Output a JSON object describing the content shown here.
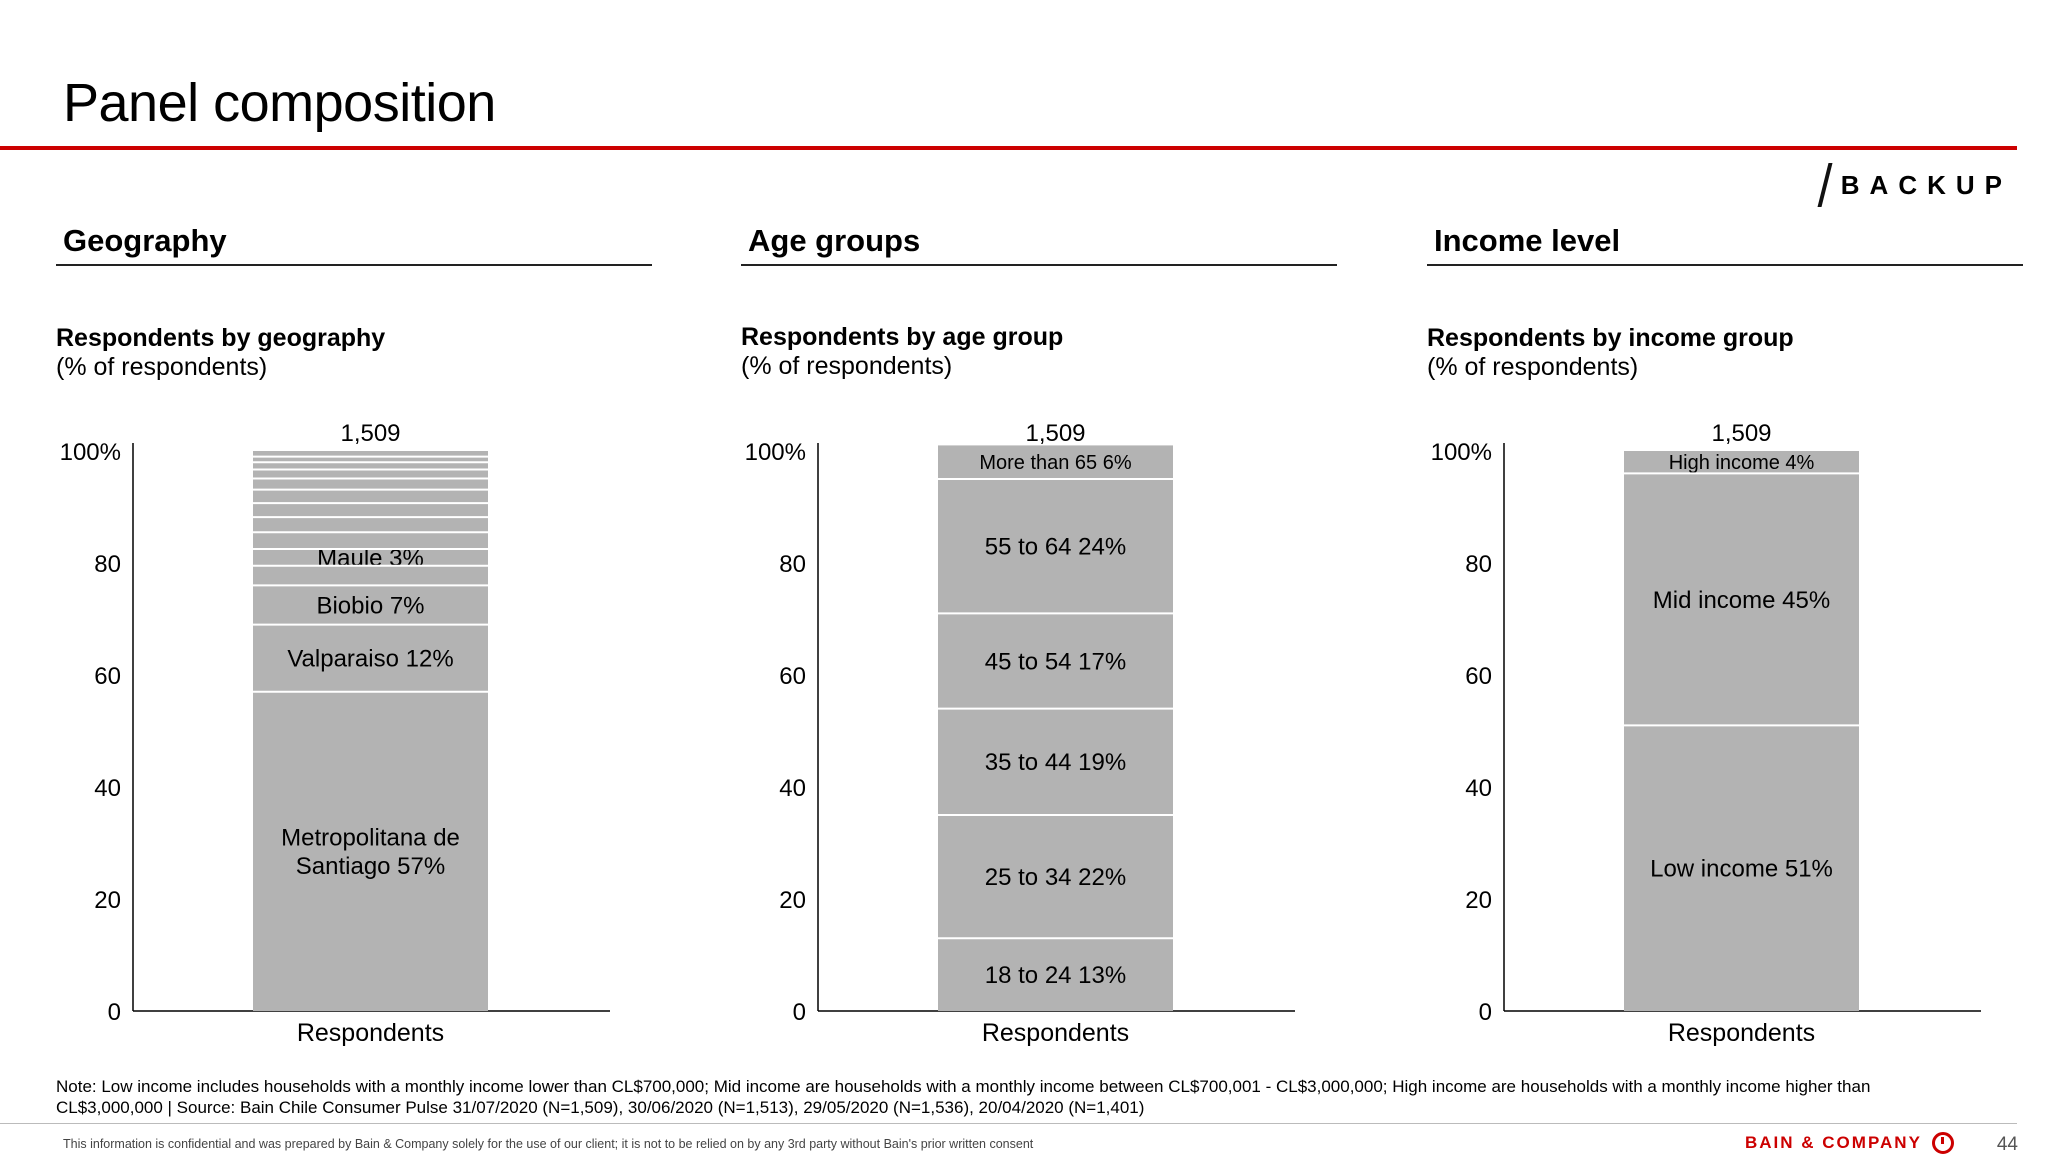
{
  "title": "Panel composition",
  "backup_label": "BACKUP",
  "sections": [
    {
      "heading": "Geography",
      "chart_title": "Respondents by geography",
      "chart_subtitle": "(% of respondents)"
    },
    {
      "heading": "Age groups",
      "chart_title": "Respondents by age group",
      "chart_subtitle": "(% of respondents)"
    },
    {
      "heading": "Income level",
      "chart_title": "Respondents by income group",
      "chart_subtitle": "(% of respondents)"
    }
  ],
  "chart_data": [
    {
      "type": "bar",
      "stacked": true,
      "categories": [
        "Respondents"
      ],
      "total_label": "1,509",
      "ylim": [
        0,
        100
      ],
      "yticks": [
        "0",
        "20",
        "40",
        "60",
        "80",
        "100%"
      ],
      "segments": [
        {
          "label": "Metropolitana de Santiago 57%",
          "lines": [
            "Metropolitana de",
            "Santiago 57%"
          ],
          "value": 57
        },
        {
          "label": "Valparaiso 12%",
          "lines": [
            "Valparaiso 12%"
          ],
          "value": 12
        },
        {
          "label": "Biobio 7%",
          "lines": [
            "Biobio 7%"
          ],
          "value": 7
        },
        {
          "label": "",
          "lines": [],
          "value": 3.5
        },
        {
          "label": "Maule 3%",
          "lines": [
            "Maule 3%"
          ],
          "value": 3
        },
        {
          "label": "",
          "lines": [],
          "value": 3
        },
        {
          "label": "",
          "lines": [],
          "value": 2.7
        },
        {
          "label": "",
          "lines": [],
          "value": 2.5
        },
        {
          "label": "",
          "lines": [],
          "value": 2.4
        },
        {
          "label": "",
          "lines": [],
          "value": 2
        },
        {
          "label": "",
          "lines": [],
          "value": 1.6
        },
        {
          "label": "",
          "lines": [],
          "value": 1.3
        },
        {
          "label": "",
          "lines": [],
          "value": 1
        },
        {
          "label": "",
          "lines": [],
          "value": 1
        }
      ]
    },
    {
      "type": "bar",
      "stacked": true,
      "categories": [
        "Respondents"
      ],
      "total_label": "1,509",
      "ylim": [
        0,
        100
      ],
      "yticks": [
        "0",
        "20",
        "40",
        "60",
        "80",
        "100%"
      ],
      "segments": [
        {
          "label": "18 to 24 13%",
          "lines": [
            "18 to 24 13%"
          ],
          "value": 13
        },
        {
          "label": "25 to 34 22%",
          "lines": [
            "25 to 34 22%"
          ],
          "value": 22
        },
        {
          "label": "35 to 44 19%",
          "lines": [
            "35 to 44 19%"
          ],
          "value": 19
        },
        {
          "label": "45 to 54 17%",
          "lines": [
            "45 to 54 17%"
          ],
          "value": 17
        },
        {
          "label": "55 to 64 24%",
          "lines": [
            "55 to 64 24%"
          ],
          "value": 24
        },
        {
          "label": "More than 65 6%",
          "lines": [
            "More than 65 6%"
          ],
          "value": 6,
          "small": true
        }
      ]
    },
    {
      "type": "bar",
      "stacked": true,
      "categories": [
        "Respondents"
      ],
      "total_label": "1,509",
      "ylim": [
        0,
        100
      ],
      "yticks": [
        "0",
        "20",
        "40",
        "60",
        "80",
        "100%"
      ],
      "segments": [
        {
          "label": "Low income 51%",
          "lines": [
            "Low income 51%"
          ],
          "value": 51
        },
        {
          "label": "Mid income 45%",
          "lines": [
            "Mid income 45%"
          ],
          "value": 45
        },
        {
          "label": "High income 4%",
          "lines": [
            "High income 4%"
          ],
          "value": 4,
          "small": true
        }
      ]
    }
  ],
  "note": "Note: Low income includes households with a monthly income lower than CL$700,000; Mid income are households with a monthly income between CL$700,001 - CL$3,000,000; High income are households with a monthly income higher than CL$3,000,000 | Source: Bain Chile Consumer Pulse 31/07/2020 (N=1,509), 30/06/2020 (N=1,513), 29/05/2020 (N=1,536), 20/04/2020 (N=1,401)",
  "confidential": "This information is confidential and was prepared by Bain & Company solely for the use of our client; it is not to be relied on by any 3rd party without Bain's prior written consent",
  "logo_text": "BAIN & COMPANY",
  "page_number": "44",
  "colors": {
    "bar": "#b3b3b3",
    "divider": "#ffffff",
    "accent": "#cc0000",
    "axis": "#000000"
  }
}
